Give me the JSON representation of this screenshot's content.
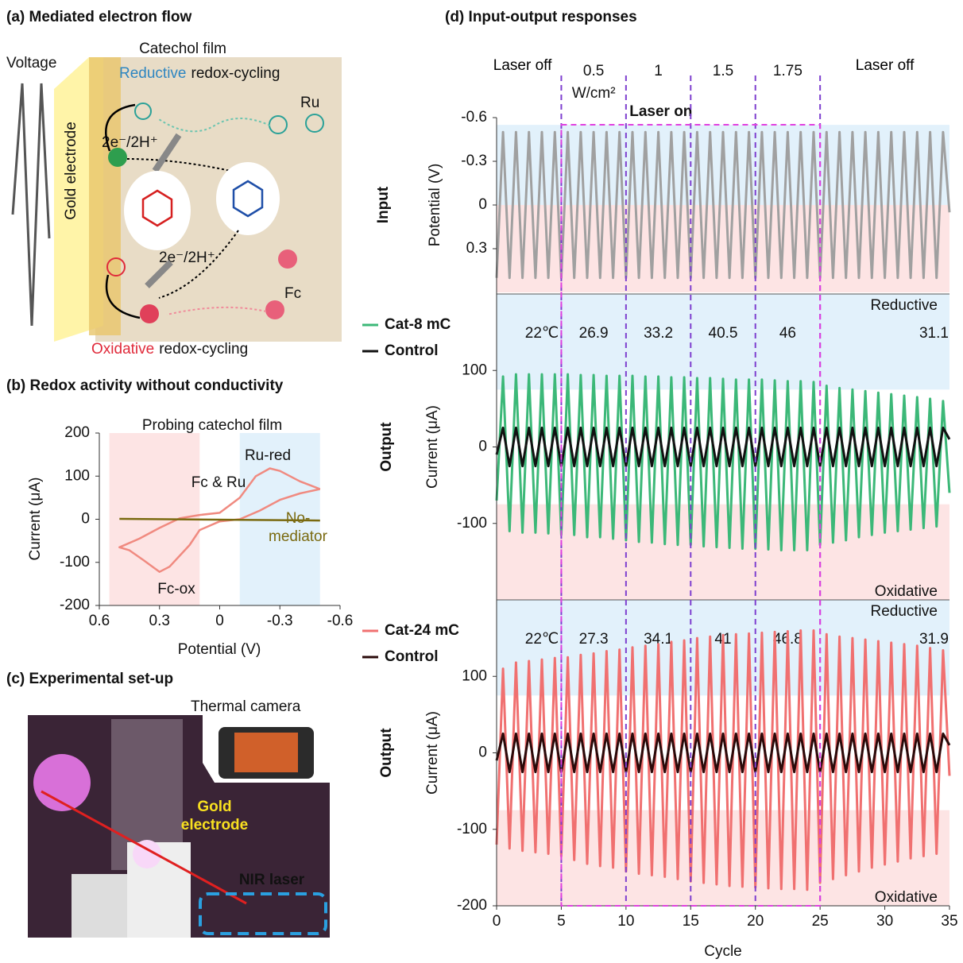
{
  "panel_a": {
    "title": "(a) Mediated electron flow",
    "voltage": "Voltage",
    "film": "Catechol film",
    "reductive": "Reductive",
    "redox_top": "redox-cycling",
    "gold": "Gold electrode",
    "ru": "Ru",
    "fc": "Fc",
    "transfer_top": "2e⁻/2H⁺",
    "transfer_bottom": "2e⁻/2H⁺",
    "oxidative": "Oxidative",
    "redox_bottom": "redox-cycling"
  },
  "panel_c": {
    "title": "(c) Experimental set-up",
    "camera": "Thermal camera",
    "electrode": "Gold electrode",
    "laser": "NIR laser"
  },
  "chart_data": [
    {
      "type": "line",
      "title": "(b) Redox activity without conductivity",
      "subtitle": "Probing catechol film",
      "xlabel": "Potential (V)",
      "ylabel": "Current (μA)",
      "xlim": [
        0.6,
        -0.6
      ],
      "ylim": [
        -200,
        200
      ],
      "xticks": [
        0.6,
        0.3,
        0,
        -0.3,
        -0.6
      ],
      "yticks": [
        200,
        100,
        0,
        -100,
        -200
      ],
      "annotations": [
        "Ru-red",
        "Fc-ox"
      ],
      "series": [
        {
          "name": "Fc & Ru",
          "color": "#f08a80",
          "x": [
            -0.5,
            -0.4,
            -0.3,
            -0.25,
            -0.18,
            -0.1,
            0,
            0.1,
            0.2,
            0.3,
            0.4,
            0.5,
            0.45,
            0.38,
            0.3,
            0.25,
            0.15,
            0.1,
            0,
            -0.1,
            -0.2,
            -0.3,
            -0.4,
            -0.5
          ],
          "values": [
            70,
            88,
            112,
            118,
            100,
            50,
            15,
            10,
            2,
            -20,
            -45,
            -65,
            -72,
            -95,
            -122,
            -110,
            -60,
            -25,
            -5,
            0,
            20,
            45,
            60,
            70
          ]
        },
        {
          "name": "No-mediator",
          "color": "#7a6a10",
          "x": [
            0.5,
            -0.5
          ],
          "values": [
            1,
            -3
          ]
        }
      ]
    },
    {
      "type": "line",
      "title": "(d) Input-output responses",
      "side_label": "Input",
      "ylabel": "Potential (V)",
      "segments": [
        "Laser off",
        "0.5",
        "1",
        "1.5",
        "1.75",
        "Laser off"
      ],
      "segment_unit": "W/cm²",
      "laser_on": "Laser on",
      "xlim": [
        0,
        35
      ],
      "ylim": [
        0.6,
        -0.6
      ],
      "yticks": [
        -0.6,
        -0.3,
        0,
        0.3
      ],
      "x": [
        0,
        0.5,
        1,
        1.5,
        2,
        2.5,
        3,
        3.5,
        4,
        4.5,
        5,
        5.5,
        6,
        6.5,
        7,
        7.5,
        8,
        8.5,
        9,
        9.5,
        10,
        10.5,
        11,
        11.5,
        12,
        12.5,
        13,
        13.5,
        14,
        14.5,
        15,
        15.5,
        16,
        16.5,
        17,
        17.5,
        18,
        18.5,
        19,
        19.5,
        20,
        20.5,
        21,
        21.5,
        22,
        22.5,
        23,
        23.5,
        24,
        24.5,
        25,
        25.5,
        26,
        26.5,
        27,
        27.5,
        28,
        28.5,
        29,
        29.5,
        30,
        30.5,
        31,
        31.5,
        32,
        32.5,
        33,
        33.5,
        34,
        34.5,
        35
      ],
      "series": [
        {
          "color": "#a0a0a0",
          "values": [
            0.5,
            -0.5,
            0.5,
            -0.5,
            0.5,
            -0.5,
            0.5,
            -0.5,
            0.5,
            -0.5,
            0.5,
            -0.5,
            0.5,
            -0.5,
            0.5,
            -0.5,
            0.5,
            -0.5,
            0.5,
            -0.5,
            0.5,
            -0.5,
            0.5,
            -0.5,
            0.5,
            -0.5,
            0.5,
            -0.5,
            0.5,
            -0.5,
            0.5,
            -0.5,
            0.5,
            -0.5,
            0.5,
            -0.5,
            0.5,
            -0.5,
            0.5,
            -0.5,
            0.5,
            -0.5,
            0.5,
            -0.5,
            0.5,
            -0.5,
            0.5,
            -0.5,
            0.5,
            -0.5,
            0.5,
            -0.5,
            0.5,
            -0.5,
            0.5,
            -0.5,
            0.5,
            -0.5,
            0.5,
            -0.5,
            0.5,
            -0.5,
            0.5,
            -0.5,
            0.5,
            -0.5,
            0.5,
            -0.5,
            0.5,
            -0.5,
            0.05
          ]
        }
      ]
    },
    {
      "type": "line",
      "side_label": "Output",
      "ylabel": "Current (μA)",
      "region_labels": [
        "Reductive",
        "Oxidative"
      ],
      "temperatures": [
        "22℃",
        "26.9",
        "33.2",
        "40.5",
        "46",
        "31.1"
      ],
      "xlim": [
        0,
        35
      ],
      "ylim": [
        -200,
        200
      ],
      "yticks": [
        -100,
        0,
        100
      ],
      "x": [
        0,
        0.5,
        1,
        1.5,
        2,
        2.5,
        3,
        3.5,
        4,
        4.5,
        5,
        5.5,
        6,
        6.5,
        7,
        7.5,
        8,
        8.5,
        9,
        9.5,
        10,
        10.5,
        11,
        11.5,
        12,
        12.5,
        13,
        13.5,
        14,
        14.5,
        15,
        15.5,
        16,
        16.5,
        17,
        17.5,
        18,
        18.5,
        19,
        19.5,
        20,
        20.5,
        21,
        21.5,
        22,
        22.5,
        23,
        23.5,
        24,
        24.5,
        25,
        25.5,
        26,
        26.5,
        27,
        27.5,
        28,
        28.5,
        29,
        29.5,
        30,
        30.5,
        31,
        31.5,
        32,
        32.5,
        33,
        33.5,
        34,
        34.5,
        35
      ],
      "series": [
        {
          "name": "Cat-8 mC",
          "color": "#3cb878",
          "values": [
            -70,
            92,
            -110,
            95,
            -112,
            95,
            -112,
            95,
            -113,
            95,
            -115,
            95,
            -115,
            94,
            -118,
            94,
            -118,
            93,
            -120,
            93,
            -122,
            93,
            -124,
            92,
            -125,
            92,
            -127,
            91,
            -128,
            91,
            -128,
            90,
            -130,
            90,
            -131,
            89,
            -132,
            88,
            -133,
            88,
            -133,
            88,
            -134,
            87,
            -135,
            86,
            -135,
            86,
            -135,
            85,
            -128,
            80,
            -125,
            77,
            -122,
            75,
            -118,
            73,
            -115,
            71,
            -112,
            69,
            -110,
            67,
            -108,
            65,
            -106,
            63,
            -104,
            60,
            -60
          ]
        },
        {
          "name": "Control",
          "color": "#111111",
          "values": [
            -10,
            25,
            -25,
            25,
            -25,
            25,
            -25,
            25,
            -25,
            25,
            -25,
            25,
            -25,
            25,
            -25,
            25,
            -25,
            25,
            -25,
            25,
            -25,
            25,
            -25,
            25,
            -25,
            25,
            -25,
            25,
            -25,
            25,
            -25,
            25,
            -25,
            25,
            -25,
            25,
            -25,
            25,
            -25,
            25,
            -25,
            25,
            -25,
            25,
            -25,
            25,
            -25,
            25,
            -25,
            25,
            -25,
            25,
            -25,
            25,
            -25,
            25,
            -25,
            25,
            -25,
            25,
            -25,
            25,
            -25,
            25,
            -25,
            25,
            -25,
            25,
            -25,
            25,
            10
          ]
        }
      ]
    },
    {
      "type": "line",
      "side_label": "Output",
      "ylabel": "Current (μA)",
      "xlabel": "Cycle",
      "region_labels": [
        "Reductive",
        "Oxidative"
      ],
      "temperatures": [
        "22℃",
        "27.3",
        "34.1",
        "41",
        "46.8",
        "31.9"
      ],
      "xlim": [
        0,
        35
      ],
      "ylim": [
        -200,
        200
      ],
      "xticks": [
        0,
        5,
        10,
        15,
        20,
        25,
        30,
        35
      ],
      "yticks": [
        -200,
        -100,
        0,
        100
      ],
      "x": [
        0,
        0.5,
        1,
        1.5,
        2,
        2.5,
        3,
        3.5,
        4,
        4.5,
        5,
        5.5,
        6,
        6.5,
        7,
        7.5,
        8,
        8.5,
        9,
        9.5,
        10,
        10.5,
        11,
        11.5,
        12,
        12.5,
        13,
        13.5,
        14,
        14.5,
        15,
        15.5,
        16,
        16.5,
        17,
        17.5,
        18,
        18.5,
        19,
        19.5,
        20,
        20.5,
        21,
        21.5,
        22,
        22.5,
        23,
        23.5,
        24,
        24.5,
        25,
        25.5,
        26,
        26.5,
        27,
        27.5,
        28,
        28.5,
        29,
        29.5,
        30,
        30.5,
        31,
        31.5,
        32,
        32.5,
        33,
        33.5,
        34,
        34.5,
        35
      ],
      "series": [
        {
          "name": "Cat-24 mC",
          "color": "#f07070",
          "values": [
            -120,
            110,
            -125,
            118,
            -128,
            120,
            -130,
            122,
            -132,
            124,
            -135,
            125,
            -140,
            128,
            -145,
            130,
            -148,
            133,
            -150,
            135,
            -155,
            138,
            -158,
            140,
            -160,
            142,
            -162,
            145,
            -165,
            147,
            -168,
            150,
            -170,
            152,
            -172,
            154,
            -174,
            155,
            -175,
            156,
            -176,
            157,
            -177,
            158,
            -178,
            159,
            -178,
            160,
            -179,
            160,
            -170,
            155,
            -165,
            152,
            -160,
            150,
            -155,
            148,
            -150,
            146,
            -146,
            144,
            -142,
            142,
            -138,
            140,
            -135,
            137,
            -132,
            134,
            -30
          ]
        },
        {
          "name": "Control",
          "color": "#2a0a0a",
          "values": [
            -10,
            25,
            -25,
            25,
            -25,
            25,
            -25,
            25,
            -25,
            25,
            -25,
            25,
            -25,
            25,
            -25,
            25,
            -25,
            25,
            -25,
            25,
            -25,
            25,
            -25,
            25,
            -25,
            25,
            -25,
            25,
            -25,
            25,
            -25,
            25,
            -25,
            25,
            -25,
            25,
            -25,
            25,
            -25,
            25,
            -25,
            25,
            -25,
            25,
            -25,
            25,
            -25,
            25,
            -25,
            25,
            -25,
            25,
            -25,
            25,
            -25,
            25,
            -25,
            25,
            -25,
            25,
            -25,
            25,
            -25,
            25,
            -25,
            25,
            -25,
            25,
            -25,
            25,
            10
          ]
        }
      ]
    }
  ]
}
